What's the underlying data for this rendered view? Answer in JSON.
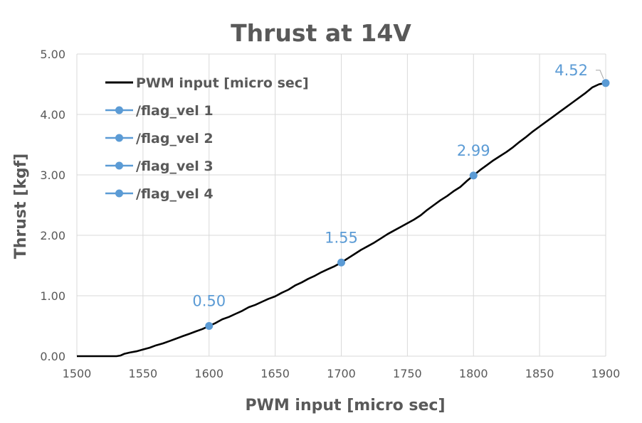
{
  "chart_data": {
    "type": "line",
    "title": "Thrust at 14V",
    "xlabel": "PWM input [micro sec]",
    "ylabel": "Thrust [kgf]",
    "xlim": [
      1500,
      1900
    ],
    "ylim": [
      0,
      5
    ],
    "x_ticks": [
      1500,
      1550,
      1600,
      1650,
      1700,
      1750,
      1800,
      1850,
      1900
    ],
    "x_tick_labels": [
      "1500",
      "1550",
      "1600",
      "1650",
      "1700",
      "1750",
      "1800",
      "1850",
      "1900"
    ],
    "y_ticks": [
      0,
      1,
      2,
      3,
      4,
      5
    ],
    "y_tick_labels": [
      "0.00",
      "1.00",
      "2.00",
      "3.00",
      "4.00",
      "5.00"
    ],
    "grid": true,
    "legend_position": "top-left",
    "series": [
      {
        "name": "PWM input [micro sec]",
        "color": "#000000",
        "marker": false,
        "x": [
          1500,
          1510,
          1520,
          1530,
          1533,
          1536,
          1540,
          1545,
          1550,
          1555,
          1560,
          1565,
          1570,
          1575,
          1580,
          1585,
          1590,
          1595,
          1600,
          1605,
          1610,
          1615,
          1620,
          1625,
          1630,
          1635,
          1640,
          1645,
          1650,
          1655,
          1660,
          1665,
          1670,
          1675,
          1680,
          1685,
          1690,
          1695,
          1700,
          1705,
          1710,
          1715,
          1720,
          1725,
          1730,
          1735,
          1740,
          1745,
          1750,
          1755,
          1760,
          1765,
          1770,
          1775,
          1780,
          1785,
          1790,
          1795,
          1800,
          1805,
          1810,
          1815,
          1820,
          1825,
          1830,
          1835,
          1840,
          1845,
          1850,
          1855,
          1860,
          1865,
          1870,
          1875,
          1880,
          1885,
          1890,
          1895,
          1900
        ],
        "y": [
          0,
          0,
          0,
          0,
          0.01,
          0.04,
          0.06,
          0.08,
          0.11,
          0.14,
          0.18,
          0.21,
          0.25,
          0.29,
          0.33,
          0.37,
          0.41,
          0.45,
          0.5,
          0.55,
          0.61,
          0.65,
          0.7,
          0.75,
          0.81,
          0.85,
          0.9,
          0.95,
          0.99,
          1.05,
          1.1,
          1.17,
          1.22,
          1.28,
          1.33,
          1.39,
          1.44,
          1.49,
          1.55,
          1.62,
          1.69,
          1.76,
          1.82,
          1.88,
          1.95,
          2.02,
          2.08,
          2.14,
          2.2,
          2.26,
          2.33,
          2.42,
          2.5,
          2.58,
          2.65,
          2.73,
          2.8,
          2.9,
          2.99,
          3.08,
          3.16,
          3.24,
          3.31,
          3.38,
          3.46,
          3.55,
          3.63,
          3.72,
          3.8,
          3.88,
          3.96,
          4.04,
          4.12,
          4.2,
          4.28,
          4.36,
          4.45,
          4.5,
          4.52
        ]
      },
      {
        "name": "/flag_vel 1",
        "color": "#5b9bd5",
        "marker": true,
        "x": [
          1600
        ],
        "y": [
          0.5
        ],
        "data_labels": [
          "0.50"
        ]
      },
      {
        "name": "/flag_vel 2",
        "color": "#5b9bd5",
        "marker": true,
        "x": [
          1700
        ],
        "y": [
          1.55
        ],
        "data_labels": [
          "1.55"
        ]
      },
      {
        "name": "/flag_vel 3",
        "color": "#5b9bd5",
        "marker": true,
        "x": [
          1800
        ],
        "y": [
          2.99
        ],
        "data_labels": [
          "2.99"
        ]
      },
      {
        "name": "/flag_vel 4",
        "color": "#5b9bd5",
        "marker": true,
        "x": [
          1900
        ],
        "y": [
          4.52
        ],
        "data_labels": [
          "4.52"
        ]
      }
    ]
  }
}
